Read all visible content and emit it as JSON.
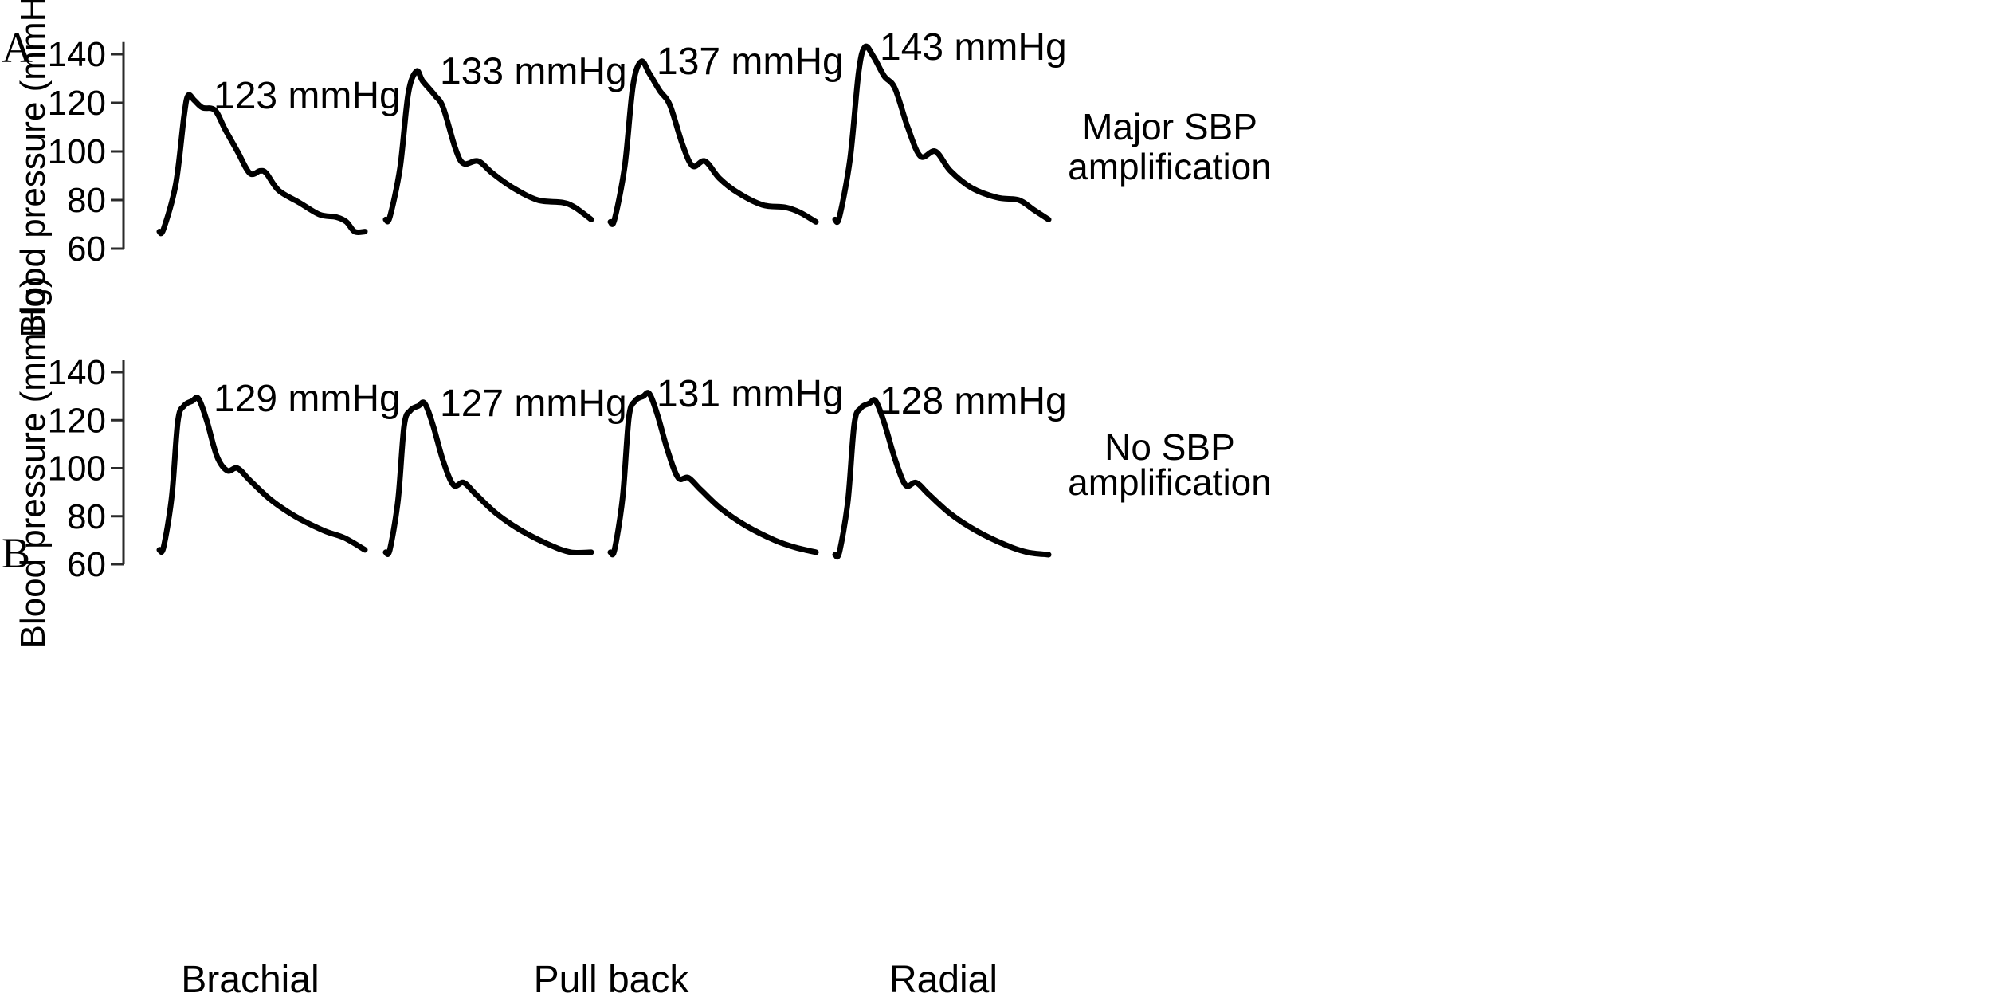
{
  "chart_data": [
    {
      "type": "line",
      "panel": "A",
      "ylabel": "Blood pressure (mmHg)",
      "yticks": [
        60,
        80,
        100,
        120,
        140
      ],
      "ylim": [
        60,
        145
      ],
      "annotation": "Major SBP amplification",
      "annotation_lines": [
        "Major SBP",
        "amplification"
      ],
      "waveforms": [
        {
          "peak_label": "123 mmHg",
          "systolic": 123,
          "shoulder": 118,
          "dicrotic_notch": 91,
          "dicrotic_peak": 92,
          "end_value": 67,
          "shape": "a1"
        },
        {
          "peak_label": "133 mmHg",
          "systolic": 133,
          "shoulder": 123,
          "dicrotic_notch": 95,
          "dicrotic_peak": 96,
          "end_value": 72,
          "shape": "a2"
        },
        {
          "peak_label": "137 mmHg",
          "systolic": 137,
          "shoulder": 125,
          "dicrotic_notch": 94,
          "dicrotic_peak": 96,
          "end_value": 71,
          "shape": "a3"
        },
        {
          "peak_label": "143 mmHg",
          "systolic": 143,
          "shoulder": 131,
          "dicrotic_notch": 98,
          "dicrotic_peak": 100,
          "end_value": 72,
          "shape": "a4"
        }
      ]
    },
    {
      "type": "line",
      "panel": "B",
      "ylabel": "Blood pressure (mmHg)",
      "yticks": [
        60,
        80,
        100,
        120,
        140
      ],
      "ylim": [
        60,
        145
      ],
      "annotation": "No SBP amplification",
      "annotation_lines": [
        "No SBP",
        "amplification"
      ],
      "waveforms": [
        {
          "peak_label": "129 mmHg",
          "systolic": 129,
          "dicrotic_notch": 99,
          "dicrotic_peak": 100,
          "end_value": 66,
          "shape": "b"
        },
        {
          "peak_label": "127 mmHg",
          "systolic": 127,
          "dicrotic_notch": 93,
          "dicrotic_peak": 94,
          "end_value": 65,
          "shape": "b"
        },
        {
          "peak_label": "131 mmHg",
          "systolic": 131,
          "dicrotic_notch": 96,
          "dicrotic_peak": 96,
          "end_value": 65,
          "shape": "b"
        },
        {
          "peak_label": "128 mmHg",
          "systolic": 128,
          "dicrotic_notch": 93,
          "dicrotic_peak": 94,
          "end_value": 64,
          "shape": "b"
        }
      ]
    }
  ],
  "x_categories": [
    "Brachial",
    "Pull back",
    "Radial"
  ]
}
